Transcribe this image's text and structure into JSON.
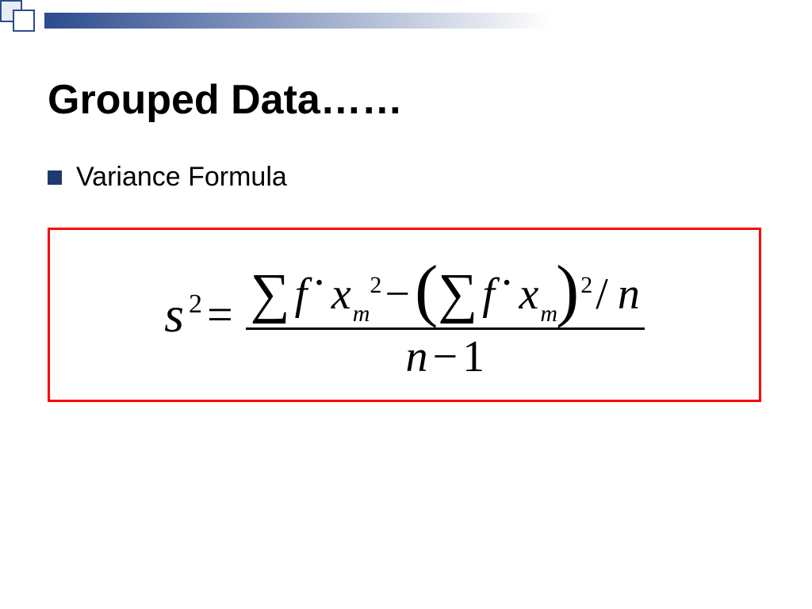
{
  "decor": {
    "square_border": "#2c4b8e",
    "square_fill_light": "#e8edf5",
    "square_fill_white": "#ffffff",
    "gradient_from": "#2c4b8e",
    "gradient_to": "#ffffff"
  },
  "title": "Grouped Data……",
  "bullet": {
    "color": "#1f3a6e",
    "text": "Variance Formula"
  },
  "formula": {
    "border_color": "#ff0000",
    "lhs_base": "s",
    "lhs_exp": "2",
    "eq": "=",
    "sigma": "∑",
    "f": "f",
    "dot": "·",
    "x": "x",
    "m": "m",
    "two": "2",
    "minus": "−",
    "lparen": "(",
    "rparen": ")",
    "slash": "/",
    "n": "n",
    "one": "1"
  }
}
